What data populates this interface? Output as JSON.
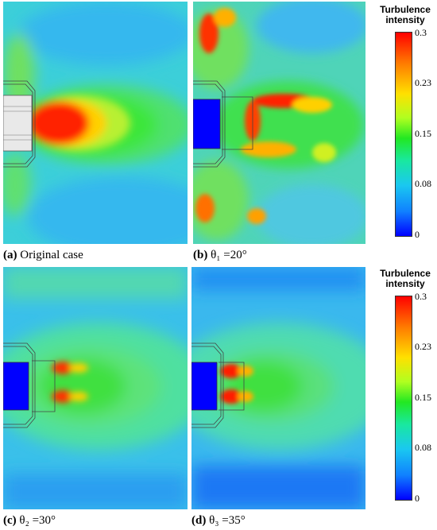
{
  "panels": [
    {
      "id": "a",
      "letter": "(a)",
      "label": " Original case"
    },
    {
      "id": "b",
      "letter": "(b)",
      "label": " θ₁ =20°"
    },
    {
      "id": "c",
      "letter": "(c)",
      "label": " θ₂ =30°"
    },
    {
      "id": "d",
      "letter": "(d)",
      "label": " θ₃ =35°"
    }
  ],
  "colorbars": [
    {
      "title_line1": "Turbulence",
      "title_line2": "intensity",
      "ticks": [
        "0.3",
        "0.23",
        "0.15",
        "0.08",
        "0"
      ]
    },
    {
      "title_line1": "Turbulence",
      "title_line2": "intensity",
      "ticks": [
        "0.3",
        "0.23",
        "0.15",
        "0.08",
        "0"
      ]
    }
  ],
  "colors": {
    "red": "#ff1a00",
    "green": "#22e822",
    "cyan": "#3ccfd9",
    "blue": "#0000ff"
  }
}
